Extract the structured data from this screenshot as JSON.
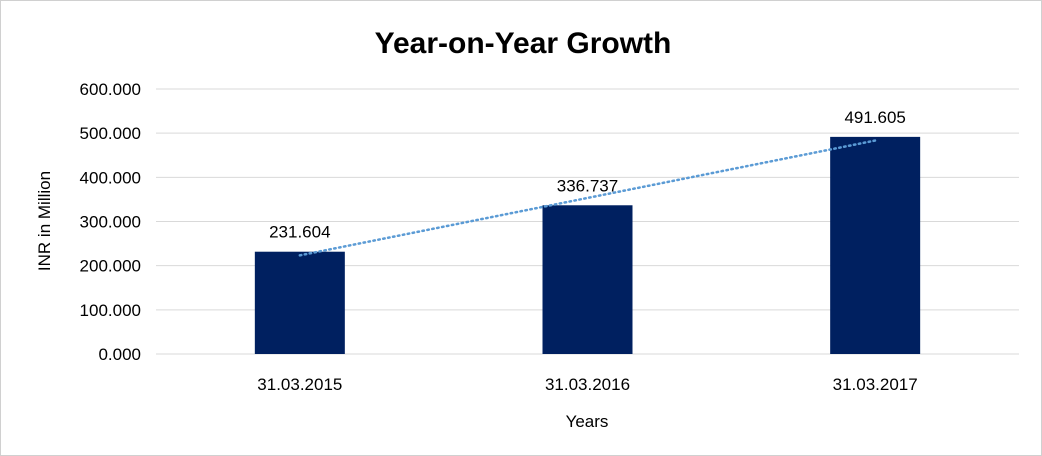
{
  "chart_data": {
    "type": "bar",
    "title": "Year-on-Year Growth",
    "xlabel": "Years",
    "ylabel": "INR in Million",
    "categories": [
      "31.03.2015",
      "31.03.2016",
      "31.03.2017"
    ],
    "values": [
      231.604,
      336.737,
      491.605
    ],
    "data_labels": [
      "231.604",
      "336.737",
      "491.605"
    ],
    "yticks": [
      0,
      100,
      200,
      300,
      400,
      500,
      600
    ],
    "ytick_labels": [
      "0.000",
      "100.000",
      "200.000",
      "300.000",
      "400.000",
      "500.000",
      "600.000"
    ],
    "ylim": [
      0,
      600
    ],
    "grid": true,
    "legend": "none",
    "trendline": "linear, dotted",
    "colors": {
      "bar": "#002060",
      "trendline": "#5b9bd5",
      "grid": "#d9d9d9"
    }
  }
}
